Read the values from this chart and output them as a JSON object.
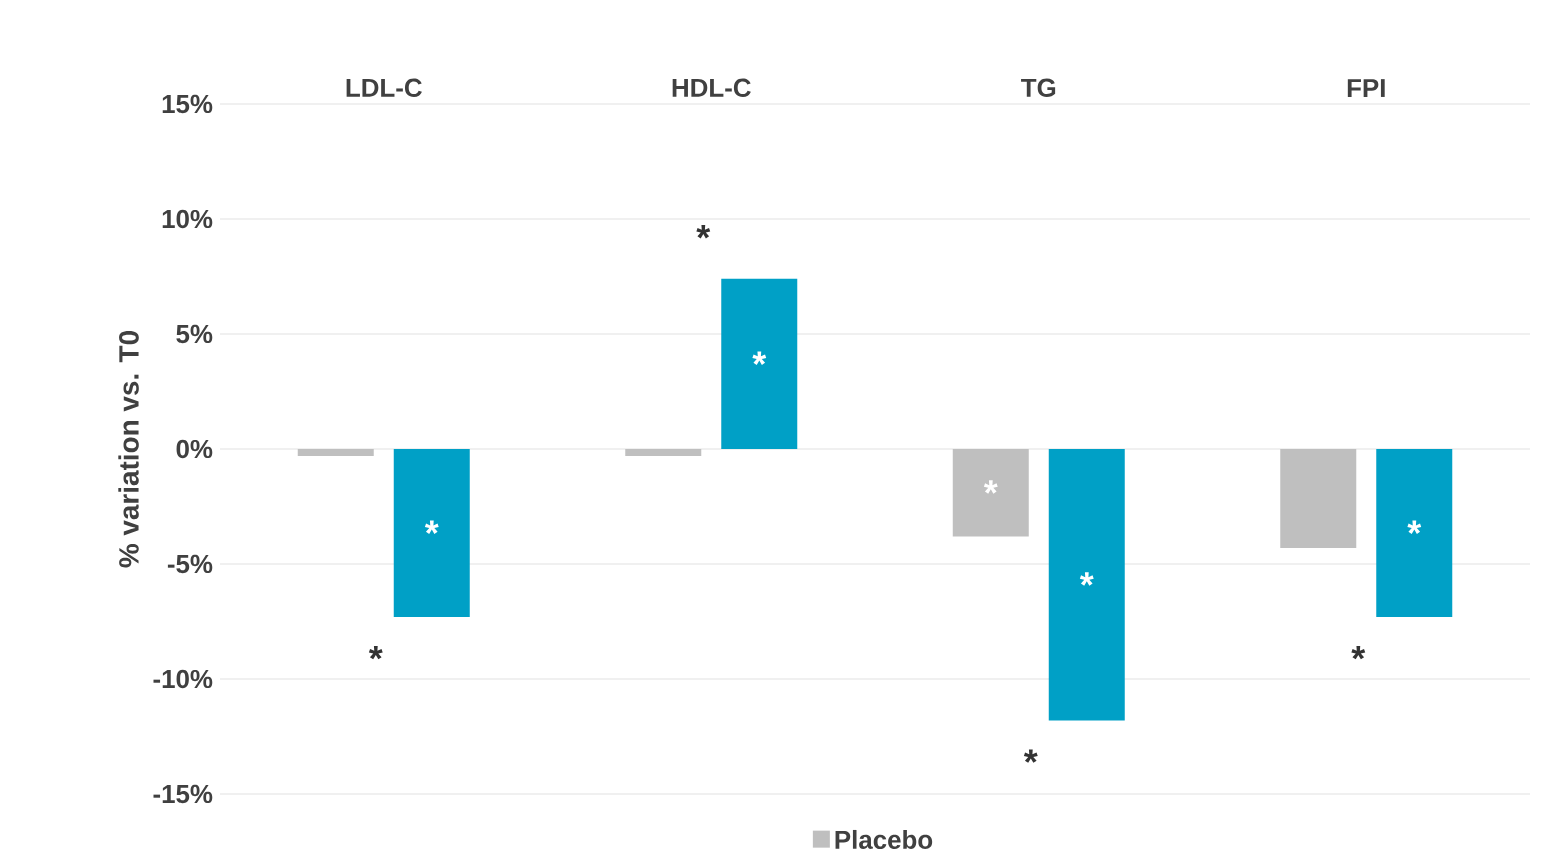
{
  "chart_data": {
    "type": "bar",
    "ylabel": "% variation vs. T0",
    "categories": [
      "LDL-C",
      "HDL-C",
      "TG",
      "FPI"
    ],
    "series": [
      {
        "name": "Placebo",
        "color": "#bfbfbf",
        "values": [
          -0.3,
          -0.3,
          -3.8,
          -4.3
        ],
        "value_labels": [
          null,
          null,
          "*",
          null
        ]
      },
      {
        "color": "#00a0c6",
        "values": [
          -7.3,
          7.4,
          -11.8,
          -7.3
        ],
        "value_labels": [
          "*",
          "*",
          "*",
          "*"
        ]
      }
    ],
    "ylim": [
      -15,
      15
    ],
    "yticks": [
      {
        "value": -15,
        "label": "-15%"
      },
      {
        "value": -10,
        "label": "-10%"
      },
      {
        "value": -5,
        "label": "-5%"
      },
      {
        "value": 0,
        "label": "0%"
      },
      {
        "value": 5,
        "label": "5%"
      },
      {
        "value": 10,
        "label": "10%"
      },
      {
        "value": 15,
        "label": "15%"
      }
    ],
    "grid": "y",
    "legend": "bottom",
    "annotations": [
      "*",
      "*",
      "*",
      "*"
    ]
  }
}
